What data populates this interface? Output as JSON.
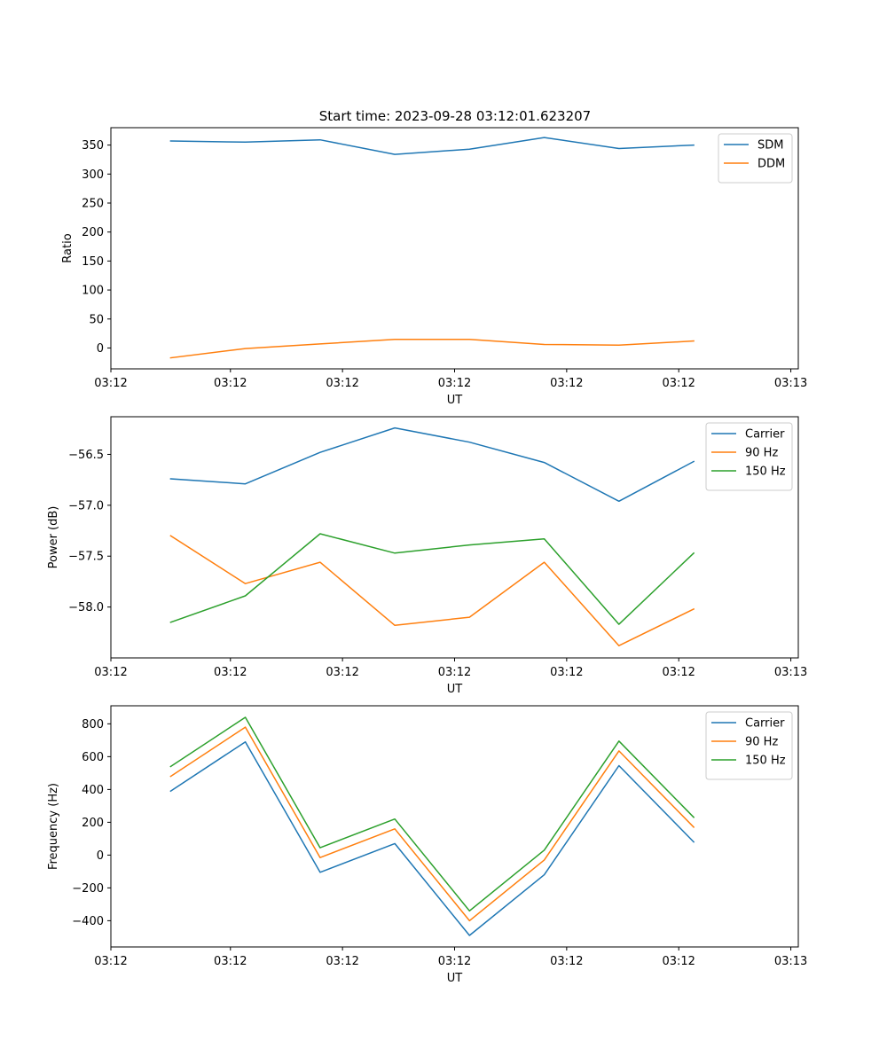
{
  "figure": {
    "title": "Start time: 2023-09-28 03:12:01.623207"
  },
  "chart_data": [
    {
      "type": "line",
      "name": "ratio",
      "title": "Start time: 2023-09-28 03:12:01.623207",
      "xlabel": "UT",
      "ylabel": "Ratio",
      "x": [
        1,
        2,
        3,
        4,
        5,
        6,
        7,
        8
      ],
      "xlim": [
        0.2,
        9.4
      ],
      "ylim": [
        -36,
        380
      ],
      "xticks": [
        0.2,
        1.8,
        3.3,
        4.8,
        6.3,
        7.8,
        9.3
      ],
      "xtick_labels": [
        "03:12",
        "03:12",
        "03:12",
        "03:12",
        "03:12",
        "03:12",
        "03:13"
      ],
      "yticks": [
        0,
        50,
        100,
        150,
        200,
        250,
        300,
        350
      ],
      "ytick_labels": [
        "0",
        "50",
        "100",
        "150",
        "200",
        "250",
        "300",
        "350"
      ],
      "grid": false,
      "legend_position": "top-right",
      "series": [
        {
          "name": "SDM",
          "color": "#1f77b4",
          "values": [
            357,
            355,
            359,
            334,
            343,
            363,
            344,
            350
          ]
        },
        {
          "name": "DDM",
          "color": "#ff7f0e",
          "values": [
            -17,
            -1,
            7,
            15,
            15,
            6,
            5,
            12
          ]
        }
      ]
    },
    {
      "type": "line",
      "name": "power",
      "title": "",
      "xlabel": "UT",
      "ylabel": "Power (dB)",
      "x": [
        1,
        2,
        3,
        4,
        5,
        6,
        7,
        8
      ],
      "xlim": [
        0.2,
        9.4
      ],
      "ylim": [
        -58.5,
        -56.13
      ],
      "xticks": [
        0.2,
        1.8,
        3.3,
        4.8,
        6.3,
        7.8,
        9.3
      ],
      "xtick_labels": [
        "03:12",
        "03:12",
        "03:12",
        "03:12",
        "03:12",
        "03:12",
        "03:13"
      ],
      "yticks": [
        -58.0,
        -57.5,
        -57.0,
        -56.5
      ],
      "ytick_labels": [
        "−58.0",
        "−57.5",
        "−57.0",
        "−56.5"
      ],
      "grid": false,
      "legend_position": "top-right",
      "series": [
        {
          "name": "Carrier",
          "color": "#1f77b4",
          "values": [
            -56.74,
            -56.79,
            -56.48,
            -56.24,
            -56.38,
            -56.58,
            -56.96,
            -56.57
          ]
        },
        {
          "name": "90 Hz",
          "color": "#ff7f0e",
          "values": [
            -57.3,
            -57.77,
            -57.56,
            -58.18,
            -58.1,
            -57.56,
            -58.38,
            -58.02
          ]
        },
        {
          "name": "150 Hz",
          "color": "#2ca02c",
          "values": [
            -58.15,
            -57.89,
            -57.28,
            -57.47,
            -57.39,
            -57.33,
            -58.17,
            -57.47
          ]
        }
      ]
    },
    {
      "type": "line",
      "name": "frequency",
      "title": "",
      "xlabel": "UT",
      "ylabel": "Frequency (Hz)",
      "x": [
        1,
        2,
        3,
        4,
        5,
        6,
        7,
        8
      ],
      "xlim": [
        0.2,
        9.4
      ],
      "ylim": [
        -560,
        910
      ],
      "xticks": [
        0.2,
        1.8,
        3.3,
        4.8,
        6.3,
        7.8,
        9.3
      ],
      "xtick_labels": [
        "03:12",
        "03:12",
        "03:12",
        "03:12",
        "03:12",
        "03:12",
        "03:13"
      ],
      "yticks": [
        -400,
        -200,
        0,
        200,
        400,
        600,
        800
      ],
      "ytick_labels": [
        "−400",
        "−200",
        "0",
        "200",
        "400",
        "600",
        "800"
      ],
      "grid": false,
      "legend_position": "top-right",
      "series": [
        {
          "name": "Carrier",
          "color": "#1f77b4",
          "values": [
            390,
            690,
            -105,
            70,
            -490,
            -120,
            545,
            80
          ]
        },
        {
          "name": "90 Hz",
          "color": "#ff7f0e",
          "values": [
            480,
            780,
            -15,
            160,
            -400,
            -30,
            635,
            170
          ]
        },
        {
          "name": "150 Hz",
          "color": "#2ca02c",
          "values": [
            540,
            840,
            45,
            220,
            -340,
            30,
            695,
            230
          ]
        }
      ]
    }
  ]
}
